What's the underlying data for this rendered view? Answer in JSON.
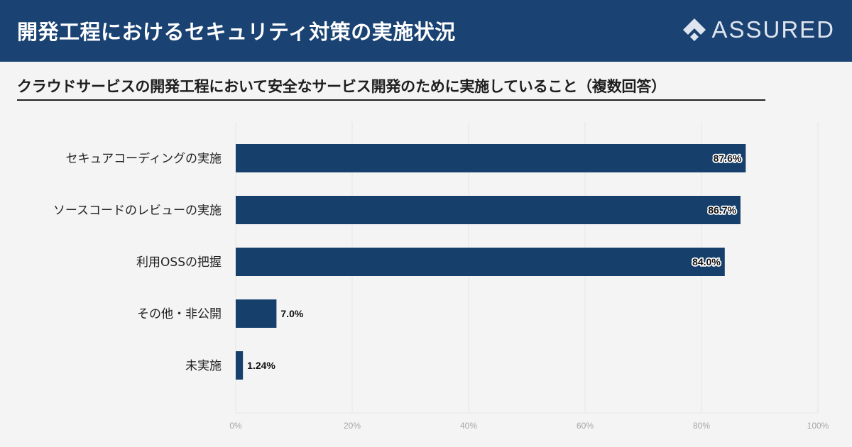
{
  "header": {
    "title": "開発工程におけるセキュリティ対策の実施状況",
    "brand": "ASSURED"
  },
  "subtitle": "クラウドサービスの開発工程において安全なサービス開発のために実施していること（複数回答）",
  "colors": {
    "header_bg": "#1a4272",
    "bar": "#16406b",
    "background": "#f4f4f4",
    "grid": "#e6e6e6"
  },
  "chart_data": {
    "type": "bar",
    "orientation": "horizontal",
    "categories": [
      "セキュアコーディングの実施",
      "ソースコードのレビューの実施",
      "利用OSSの把握",
      "その他・非公開",
      "未実施"
    ],
    "values": [
      87.6,
      86.7,
      84.0,
      7.0,
      1.24
    ],
    "value_labels": [
      "87.6%",
      "86.7%",
      "84.0%",
      "7.0%",
      "1.24%"
    ],
    "xlim": [
      0,
      100
    ],
    "ticks": [
      0,
      20,
      40,
      60,
      80,
      100
    ],
    "tick_labels": [
      "0%",
      "20%",
      "40%",
      "60%",
      "80%",
      "100%"
    ],
    "title": "クラウドサービスの開発工程において安全なサービス開発のために実施していること（複数回答）",
    "xlabel": "",
    "ylabel": "",
    "grid": true,
    "legend": "none"
  }
}
